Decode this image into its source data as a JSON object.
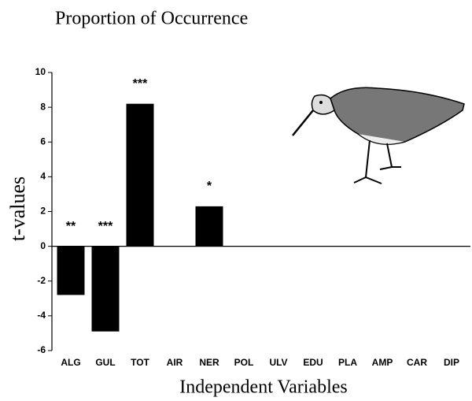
{
  "chart_data": {
    "type": "bar",
    "title": "Proportion of Occurrence",
    "x_label": "Independent Variables",
    "y_label": "t-values",
    "categories": [
      "ALG",
      "GUL",
      "TOT",
      "AIR",
      "NER",
      "POL",
      "ULV",
      "EDU",
      "PLA",
      "AMP",
      "CAR",
      "DIP"
    ],
    "values": [
      -2.8,
      -4.9,
      8.2,
      null,
      2.3,
      null,
      null,
      null,
      null,
      null,
      null,
      null
    ],
    "significance": [
      "**",
      "***",
      "***",
      null,
      "*",
      null,
      null,
      null,
      null,
      null,
      null,
      null
    ],
    "color": "#000000",
    "ylim": [
      -6,
      10
    ],
    "yticks": [
      -6,
      -4,
      -2,
      0,
      2,
      4,
      6,
      8,
      10
    ],
    "grid": false
  }
}
